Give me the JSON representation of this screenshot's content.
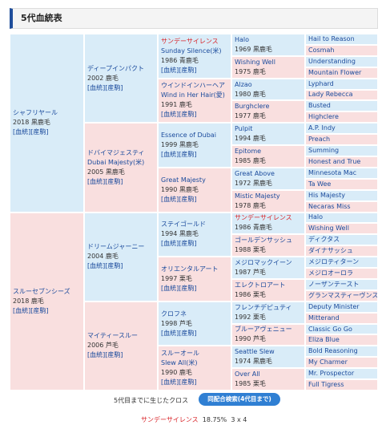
{
  "header": {
    "title": "5代血統表"
  },
  "pedigree": {
    "gen1": [
      {
        "name": "シャフリヤール",
        "born": "2018 黒鹿毛",
        "links": "[血統][産駒]"
      },
      {
        "name": "スルーセブンシーズ",
        "born": "2018 鹿毛",
        "links": "[血統][産駒]"
      }
    ],
    "gen2": [
      {
        "name": "ディープインパクト",
        "born": "2002 鹿毛",
        "links": "[血統][産駒]"
      },
      {
        "name": "ドバイマジェスティ",
        "name_en": "Dubai Majesty(米)",
        "born": "2005 黒鹿毛",
        "links": "[血統][産駒]"
      },
      {
        "name": "ドリームジャーニー",
        "born": "2004 鹿毛",
        "links": "[血統][産駒]"
      },
      {
        "name": "マイティースルー",
        "born": "2006 芦毛",
        "links": "[血統][産駒]"
      }
    ],
    "gen3": [
      {
        "name": "サンデーサイレンス",
        "name_en": "Sunday Silence(米)",
        "born": "1986 青鹿毛",
        "links": "[血統][産駒]",
        "inbred": true
      },
      {
        "name": "ウインドインハーヘア",
        "name_en": "Wind in Her Hair(愛)",
        "born": "1991 鹿毛",
        "links": "[血統][産駒]"
      },
      {
        "name": "Essence of Dubai",
        "born": "1999 黒鹿毛",
        "links": "[血統][産駒]"
      },
      {
        "name": "Great Majesty",
        "born": "1990 黒鹿毛",
        "links": "[血統][産駒]"
      },
      {
        "name": "ステイゴールド",
        "born": "1994 黒鹿毛",
        "links": "[血統][産駒]"
      },
      {
        "name": "オリエンタルアート",
        "born": "1997 栗毛",
        "links": "[血統][産駒]"
      },
      {
        "name": "クロフネ",
        "born": "1998 芦毛",
        "links": "[血統][産駒]"
      },
      {
        "name": "スルーオール",
        "name_en": "Slew All(米)",
        "born": "1990 鹿毛",
        "links": "[血統][産駒]"
      }
    ],
    "gen4": [
      {
        "name": "Halo",
        "born": "1969 黒鹿毛"
      },
      {
        "name": "Wishing Well",
        "born": "1975 鹿毛"
      },
      {
        "name": "Alzao",
        "born": "1980 鹿毛"
      },
      {
        "name": "Burghclere",
        "born": "1977 鹿毛"
      },
      {
        "name": "Pulpit",
        "born": "1994 鹿毛"
      },
      {
        "name": "Epitome",
        "born": "1985 鹿毛"
      },
      {
        "name": "Great Above",
        "born": "1972 黒鹿毛"
      },
      {
        "name": "Mistic Majesty",
        "born": "1978 鹿毛"
      },
      {
        "name": "サンデーサイレンス",
        "born": "1986 青鹿毛",
        "inbred": true
      },
      {
        "name": "ゴールデンサッシュ",
        "born": "1988 栗毛"
      },
      {
        "name": "メジロマックイーン",
        "born": "1987 芦毛"
      },
      {
        "name": "エレクトロアート",
        "born": "1986 栗毛"
      },
      {
        "name": "フレンチデピュティ",
        "born": "1992 栗毛"
      },
      {
        "name": "ブルーアヴェニュー",
        "born": "1990 芦毛"
      },
      {
        "name": "Seattle Slew",
        "born": "1974 黒鹿毛"
      },
      {
        "name": "Over All",
        "born": "1985 栗毛"
      }
    ],
    "gen5": [
      {
        "name": "Hail to Reason"
      },
      {
        "name": "Cosmah"
      },
      {
        "name": "Understanding"
      },
      {
        "name": "Mountain Flower"
      },
      {
        "name": "Lyphard"
      },
      {
        "name": "Lady Rebecca"
      },
      {
        "name": "Busted"
      },
      {
        "name": "Highclere"
      },
      {
        "name": "A.P. Indy"
      },
      {
        "name": "Preach"
      },
      {
        "name": "Summing"
      },
      {
        "name": "Honest and True"
      },
      {
        "name": "Minnesota Mac"
      },
      {
        "name": "Ta Wee"
      },
      {
        "name": "His Majesty"
      },
      {
        "name": "Necaras Miss"
      },
      {
        "name": "Halo"
      },
      {
        "name": "Wishing Well"
      },
      {
        "name": "ディクタス"
      },
      {
        "name": "ダイナサッシュ"
      },
      {
        "name": "メジロティターン"
      },
      {
        "name": "メジロオーロラ"
      },
      {
        "name": "ノーザンテースト"
      },
      {
        "name": "グランマスティーヴンス"
      },
      {
        "name": "Deputy Minister"
      },
      {
        "name": "Mitterand"
      },
      {
        "name": "Classic Go Go"
      },
      {
        "name": "Eliza Blue"
      },
      {
        "name": "Bold Reasoning"
      },
      {
        "name": "My Charmer"
      },
      {
        "name": "Mr. Prospector"
      },
      {
        "name": "Full Tigress"
      }
    ]
  },
  "footer": {
    "cross_label": "5代目までに生じたクロス",
    "search_button": "同配合検索(4代目まで)",
    "crosses": [
      {
        "name": "サンデーサイレンス",
        "percent": "18.75%",
        "generations": "3 x 4"
      }
    ]
  }
}
